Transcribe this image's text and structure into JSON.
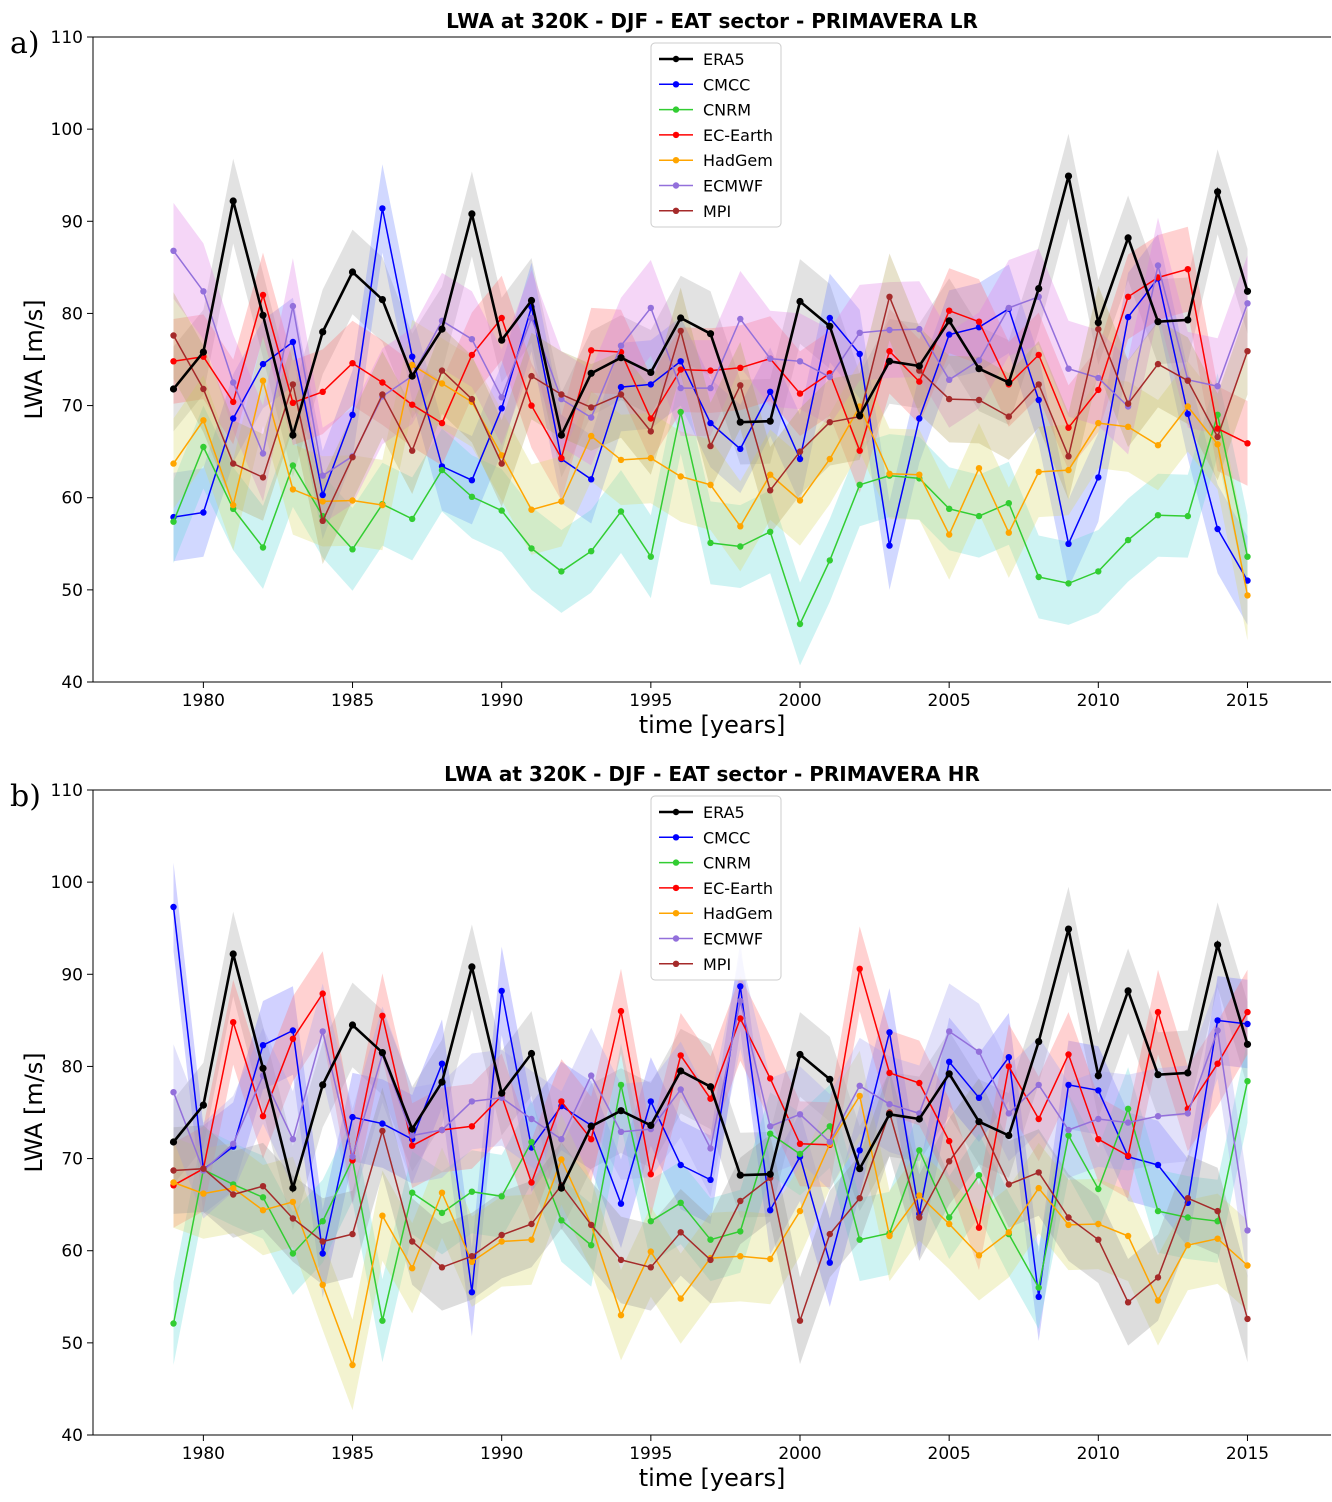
{
  "chart_data": [
    {
      "type": "line",
      "panel_label": "a)",
      "title": "LWA at 320K - DJF - EAT sector - PRIMAVERA LR",
      "xlabel": "time [years]",
      "ylabel": "LWA [m/s]",
      "xlim": [
        1976.3,
        2017.8
      ],
      "ylim": [
        40,
        110
      ],
      "xticks": [
        1980,
        1985,
        1990,
        1995,
        2000,
        2005,
        2010,
        2015
      ],
      "yticks": [
        40,
        50,
        60,
        70,
        80,
        90,
        100,
        110
      ],
      "grid": false,
      "legend_position": "top-center",
      "x": [
        1979,
        1980,
        1981,
        1982,
        1983,
        1984,
        1985,
        1986,
        1987,
        1988,
        1989,
        1990,
        1991,
        1992,
        1993,
        1994,
        1995,
        1996,
        1997,
        1998,
        1999,
        2000,
        2001,
        2002,
        2003,
        2004,
        2005,
        2006,
        2007,
        2008,
        2009,
        2010,
        2011,
        2012,
        2013,
        2014,
        2015
      ],
      "series": [
        {
          "name": "ERA5",
          "color": "#000000",
          "band_color": "#a6a6a6",
          "values": [
            71.8,
            75.8,
            92.2,
            79.8,
            66.8,
            78.0,
            84.5,
            81.5,
            73.2,
            78.3,
            90.8,
            77.1,
            81.4,
            66.8,
            73.5,
            75.2,
            73.6,
            79.5,
            77.8,
            68.2,
            68.3,
            81.3,
            78.6,
            68.9,
            74.8,
            74.3,
            79.2,
            74.0,
            72.5,
            82.7,
            94.9,
            79.0,
            88.2,
            79.1,
            79.3,
            93.2,
            82.4
          ]
        },
        {
          "name": "CMCC",
          "color": "#0000ff",
          "band_color": "#6f86ff",
          "values": [
            57.9,
            58.4,
            68.6,
            74.5,
            76.9,
            60.3,
            69.0,
            91.4,
            75.3,
            63.4,
            61.9,
            69.7,
            80.7,
            64.2,
            62.0,
            72.0,
            72.3,
            74.8,
            68.1,
            65.3,
            71.5,
            64.2,
            79.5,
            75.6,
            54.8,
            68.6,
            77.7,
            78.5,
            80.5,
            70.6,
            55.0,
            62.2,
            79.6,
            83.8,
            69.1,
            56.6,
            51.0
          ]
        },
        {
          "name": "CNRM",
          "color": "#32cd32",
          "band_color": "#66d9d9",
          "values": [
            57.4,
            65.5,
            58.8,
            54.6,
            63.5,
            58.0,
            54.4,
            59.3,
            57.7,
            63.0,
            60.1,
            58.6,
            54.5,
            52.0,
            54.2,
            58.5,
            53.6,
            69.3,
            55.1,
            54.7,
            56.3,
            46.3,
            53.2,
            61.4,
            62.4,
            62.1,
            58.8,
            58.0,
            59.4,
            51.4,
            50.7,
            52.0,
            55.4,
            58.1,
            58.0,
            69.0,
            53.6
          ]
        },
        {
          "name": "EC-Earth",
          "color": "#ff0000",
          "band_color": "#ff7070",
          "values": [
            74.8,
            75.3,
            70.4,
            82.0,
            70.3,
            71.5,
            74.6,
            72.5,
            70.1,
            68.1,
            75.5,
            79.5,
            70.0,
            64.3,
            76.0,
            75.8,
            68.6,
            73.9,
            73.8,
            74.1,
            75.1,
            71.3,
            73.5,
            65.1,
            75.9,
            72.6,
            80.3,
            79.1,
            72.3,
            75.5,
            67.6,
            71.7,
            81.8,
            83.9,
            84.8,
            67.5,
            65.9
          ]
        },
        {
          "name": "HadGem",
          "color": "#ffa500",
          "band_color": "#d9d96e",
          "values": [
            63.7,
            68.4,
            59.2,
            72.7,
            60.9,
            59.6,
            59.7,
            59.2,
            74.4,
            72.4,
            70.4,
            64.6,
            58.7,
            59.6,
            66.7,
            64.1,
            64.3,
            62.3,
            61.4,
            56.9,
            62.5,
            59.7,
            64.2,
            69.9,
            62.6,
            62.5,
            56.0,
            63.2,
            56.2,
            62.8,
            63.0,
            68.1,
            67.7,
            65.7,
            69.9,
            65.8,
            49.4
          ]
        },
        {
          "name": "ECMWF",
          "color": "#9370db",
          "band_color": "#e07ee6",
          "values": [
            86.8,
            82.4,
            72.5,
            64.8,
            80.8,
            62.4,
            64.5,
            71.0,
            73.2,
            79.2,
            77.2,
            70.9,
            79.5,
            70.7,
            68.7,
            76.5,
            80.6,
            71.9,
            71.9,
            79.4,
            75.1,
            74.8,
            73.1,
            77.9,
            78.2,
            78.3,
            72.8,
            74.9,
            80.6,
            81.8,
            74.0,
            73.0,
            69.9,
            85.2,
            72.8,
            72.1,
            81.1
          ]
        },
        {
          "name": "MPI",
          "color": "#a52a2a",
          "band_color": "#b5a45e",
          "values": [
            77.6,
            71.8,
            63.7,
            62.2,
            72.3,
            57.5,
            64.4,
            71.2,
            65.1,
            73.8,
            70.7,
            63.7,
            73.2,
            71.2,
            69.8,
            71.2,
            67.2,
            78.1,
            65.6,
            72.2,
            60.8,
            65.0,
            68.2,
            68.8,
            81.8,
            73.8,
            70.7,
            70.6,
            68.8,
            72.3,
            64.5,
            78.3,
            70.2,
            74.5,
            72.7,
            66.6,
            75.9
          ]
        }
      ]
    },
    {
      "type": "line",
      "panel_label": "b)",
      "title": "LWA at 320K - DJF - EAT sector - PRIMAVERA HR",
      "xlabel": "time [years]",
      "ylabel": "LWA [m/s]",
      "xlim": [
        1976.3,
        2017.8
      ],
      "ylim": [
        40,
        110
      ],
      "xticks": [
        1980,
        1985,
        1990,
        1995,
        2000,
        2005,
        2010,
        2015
      ],
      "yticks": [
        40,
        50,
        60,
        70,
        80,
        90,
        100,
        110
      ],
      "grid": false,
      "legend_position": "top-center",
      "x": [
        1979,
        1980,
        1981,
        1982,
        1983,
        1984,
        1985,
        1986,
        1987,
        1988,
        1989,
        1990,
        1991,
        1992,
        1993,
        1994,
        1995,
        1996,
        1997,
        1998,
        1999,
        2000,
        2001,
        2002,
        2003,
        2004,
        2005,
        2006,
        2007,
        2008,
        2009,
        2010,
        2011,
        2012,
        2013,
        2014,
        2015
      ],
      "series": [
        {
          "name": "ERA5",
          "color": "#000000",
          "band_color": "#a6a6a6",
          "values": [
            71.8,
            75.8,
            92.2,
            79.8,
            66.8,
            78.0,
            84.5,
            81.5,
            73.2,
            78.3,
            90.8,
            77.1,
            81.4,
            66.8,
            73.5,
            75.2,
            73.6,
            79.5,
            77.8,
            68.2,
            68.3,
            81.3,
            78.6,
            68.9,
            74.8,
            74.3,
            79.2,
            74.0,
            72.5,
            82.7,
            94.9,
            79.0,
            88.2,
            79.1,
            79.3,
            93.2,
            82.4
          ]
        },
        {
          "name": "CMCC",
          "color": "#0000ff",
          "band_color": "#6f6fff",
          "values": [
            97.3,
            68.8,
            71.3,
            82.3,
            83.9,
            59.7,
            74.5,
            73.8,
            72.1,
            80.3,
            55.5,
            88.2,
            71.2,
            75.7,
            73.6,
            65.1,
            76.2,
            69.3,
            67.7,
            88.7,
            64.4,
            70.2,
            58.7,
            70.9,
            83.7,
            64.0,
            80.5,
            76.6,
            81.0,
            55.0,
            78.0,
            77.4,
            70.2,
            69.3,
            65.2,
            85.0,
            84.6
          ]
        },
        {
          "name": "CNRM",
          "color": "#32cd32",
          "band_color": "#66d9d9",
          "values": [
            52.1,
            68.8,
            67.2,
            65.8,
            59.7,
            63.2,
            69.9,
            52.4,
            66.3,
            64.1,
            66.4,
            65.9,
            71.8,
            63.3,
            60.6,
            78.0,
            63.2,
            65.2,
            61.2,
            62.1,
            72.7,
            70.5,
            73.5,
            61.2,
            61.9,
            70.9,
            63.6,
            68.2,
            61.8,
            56.0,
            72.5,
            66.7,
            75.4,
            64.3,
            63.6,
            63.2,
            78.4
          ]
        },
        {
          "name": "EC-Earth",
          "color": "#ff0000",
          "band_color": "#ff7070",
          "values": [
            67.1,
            68.9,
            84.8,
            74.6,
            83.0,
            87.9,
            69.8,
            85.5,
            71.4,
            73.1,
            73.5,
            76.8,
            67.4,
            76.2,
            72.1,
            86.0,
            68.3,
            81.2,
            76.5,
            85.2,
            78.7,
            71.6,
            71.5,
            90.6,
            79.3,
            78.2,
            71.9,
            62.5,
            80.0,
            74.3,
            81.3,
            72.1,
            70.3,
            85.9,
            75.4,
            80.3,
            85.9
          ]
        },
        {
          "name": "HadGem",
          "color": "#ffa500",
          "band_color": "#d9d96e",
          "values": [
            67.4,
            66.2,
            66.8,
            64.4,
            65.3,
            56.3,
            47.6,
            63.8,
            58.1,
            66.3,
            58.8,
            61.0,
            61.2,
            69.9,
            62.8,
            53.0,
            59.9,
            54.8,
            59.2,
            59.4,
            59.1,
            64.3,
            71.6,
            76.8,
            61.6,
            66.0,
            62.9,
            59.5,
            62.0,
            66.8,
            62.8,
            62.9,
            61.6,
            54.6,
            60.6,
            61.3,
            58.4
          ]
        },
        {
          "name": "ECMWF",
          "color": "#9370db",
          "band_color": "#a5a2f0",
          "values": [
            77.2,
            68.7,
            71.6,
            79.0,
            72.1,
            83.8,
            70.2,
            81.3,
            72.5,
            73.1,
            76.2,
            76.6,
            74.3,
            72.1,
            79.0,
            72.9,
            73.2,
            77.5,
            71.1,
            87.1,
            73.5,
            74.8,
            71.8,
            77.9,
            75.9,
            74.9,
            83.8,
            81.6,
            74.9,
            78.0,
            73.1,
            74.3,
            73.9,
            74.6,
            74.9,
            83.9,
            62.2
          ]
        },
        {
          "name": "MPI",
          "color": "#a52a2a",
          "band_color": "#969696",
          "values": [
            68.7,
            68.9,
            66.1,
            67.0,
            63.5,
            61.0,
            61.8,
            73.0,
            61.0,
            58.2,
            59.4,
            61.7,
            62.9,
            67.1,
            62.8,
            59.0,
            58.2,
            62.0,
            59.0,
            65.4,
            67.9,
            52.4,
            61.8,
            65.7,
            75.0,
            63.6,
            69.7,
            74.0,
            67.2,
            68.5,
            63.6,
            61.2,
            54.4,
            57.1,
            65.7,
            64.3,
            52.6
          ]
        }
      ]
    }
  ]
}
